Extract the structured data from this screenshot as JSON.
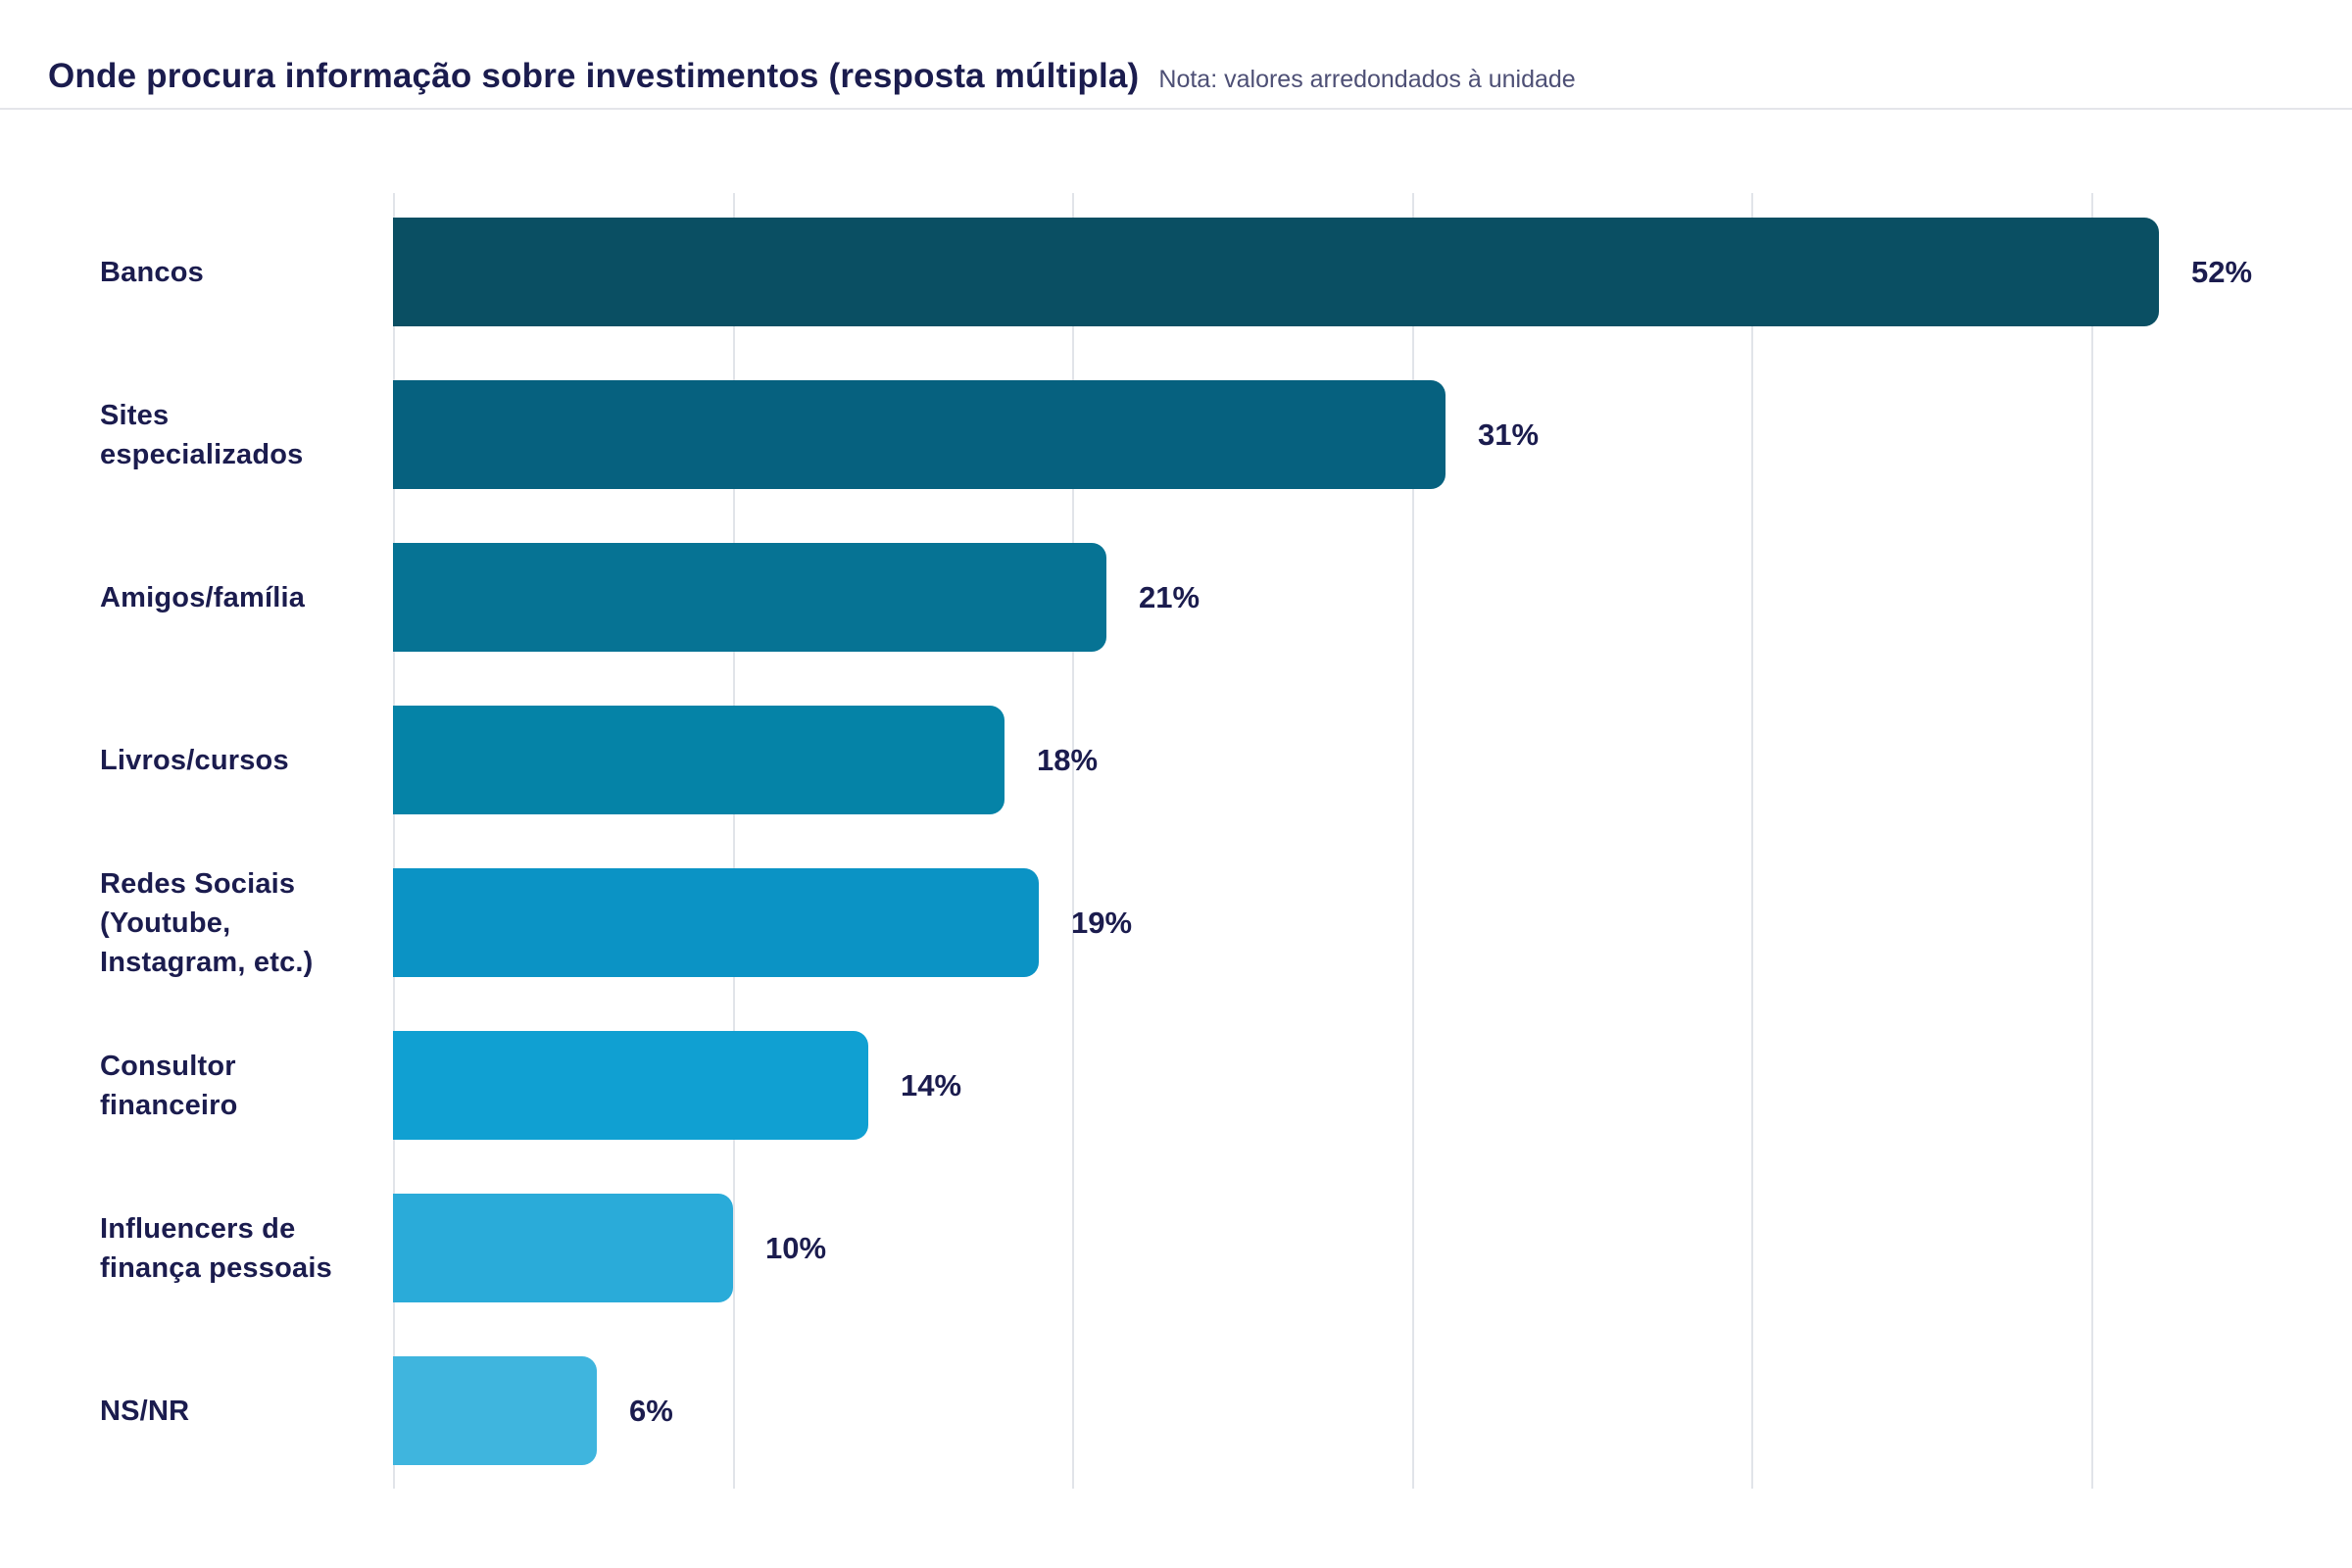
{
  "header": {
    "title": "Onde procura informação sobre investimentos (resposta múltipla)",
    "note": "Nota: valores arredondados à unidade"
  },
  "chart_data": {
    "type": "bar",
    "orientation": "horizontal",
    "title": "Onde procura informação sobre investimentos (resposta múltipla)",
    "subtitle": "Nota: valores arredondados à unidade",
    "categories": [
      "Bancos",
      "Sites especializados",
      "Amigos/família",
      "Livros/cursos",
      "Redes Sociais (Youtube, Instagram, etc.)",
      "Consultor financeiro",
      "Influencers de finança pessoais",
      "NS/NR"
    ],
    "values": [
      52,
      31,
      21,
      18,
      19,
      14,
      10,
      6
    ],
    "value_labels": [
      "52%",
      "31%",
      "21%",
      "18%",
      "19%",
      "14%",
      "10%",
      "6%"
    ],
    "bar_colors": [
      "#0a4f63",
      "#06617f",
      "#067394",
      "#0583a7",
      "#0b93c5",
      "#10a0d2",
      "#2aabd9",
      "#3fb5de"
    ],
    "xlim": [
      0,
      60
    ],
    "gridline_interval_pct": 10,
    "gridline_max_pct": 50,
    "grid": "vertical-only",
    "legend": "none",
    "xlabel": "",
    "ylabel": ""
  },
  "colors": {
    "text": "#1b1c4e",
    "note_text": "#4d4f75",
    "gridline": "#e1e4e9",
    "header_divider": "#e4e5ea",
    "background": "#ffffff"
  }
}
